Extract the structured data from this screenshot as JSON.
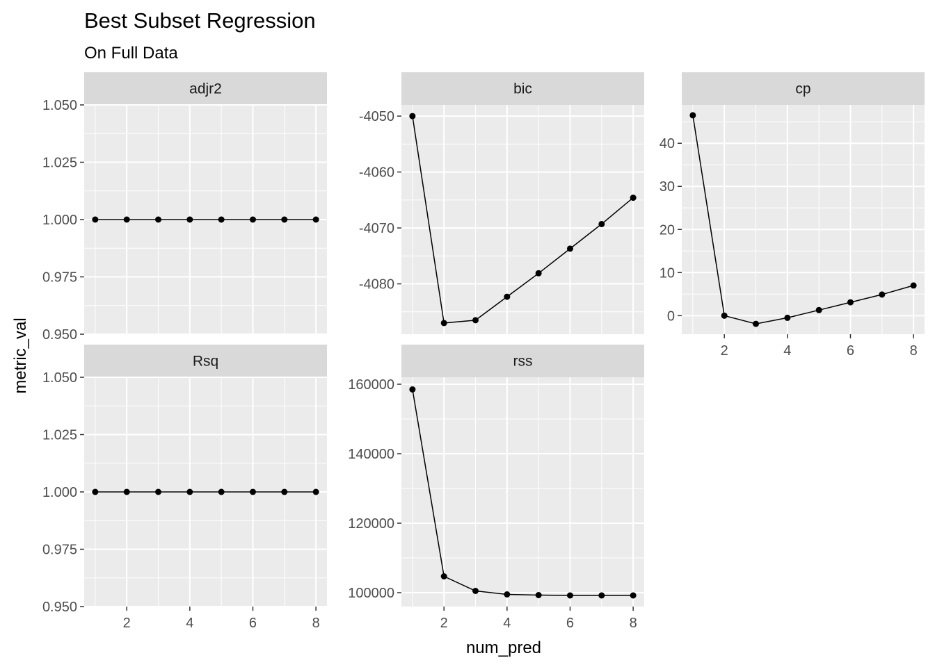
{
  "chart_data": {
    "type": "line",
    "title": "Best Subset Regression",
    "subtitle": "On Full Data",
    "xlabel": "num_pred",
    "ylabel": "metric_val",
    "x": [
      1,
      2,
      3,
      4,
      5,
      6,
      7,
      8
    ],
    "x_ticks": [
      2,
      4,
      6,
      8
    ],
    "grid": true,
    "facet_scales": "free_y",
    "panels": [
      {
        "name": "adjr2",
        "values": [
          1,
          1,
          1,
          1,
          1,
          1,
          1,
          1
        ],
        "ylim": [
          0.95,
          1.05
        ],
        "y_ticks": [
          0.95,
          0.975,
          1.0,
          1.025,
          1.05
        ],
        "y_tick_labels": [
          "0.950",
          "0.975",
          "1.000",
          "1.025",
          "1.050"
        ]
      },
      {
        "name": "bic",
        "values": [
          -4050,
          -4087,
          -4086.5,
          -4082.3,
          -4078.1,
          -4073.7,
          -4069.3,
          -4064.6
        ],
        "ylim": [
          -4089,
          -4048
        ],
        "y_ticks": [
          -4050,
          -4060,
          -4070,
          -4080
        ],
        "y_tick_labels": [
          "-4050",
          "-4060",
          "-4070",
          "-4080"
        ]
      },
      {
        "name": "cp",
        "values": [
          46.5,
          0,
          -1.9,
          -0.5,
          1.3,
          3.1,
          4.9,
          7
        ],
        "ylim": [
          -4.3,
          48.9
        ],
        "y_ticks": [
          0,
          10,
          20,
          30,
          40
        ],
        "y_tick_labels": [
          "0",
          "10",
          "20",
          "30",
          "40"
        ]
      },
      {
        "name": "Rsq",
        "values": [
          1,
          1,
          1,
          1,
          1,
          1,
          1,
          1
        ],
        "ylim": [
          0.95,
          1.05
        ],
        "y_ticks": [
          0.95,
          0.975,
          1.0,
          1.025,
          1.05
        ],
        "y_tick_labels": [
          "0.950",
          "0.975",
          "1.000",
          "1.025",
          "1.050"
        ]
      },
      {
        "name": "rss",
        "values": [
          158500,
          104700,
          100500,
          99500,
          99300,
          99200,
          99200,
          99200
        ],
        "ylim": [
          96000,
          162000
        ],
        "y_ticks": [
          100000,
          120000,
          140000,
          160000
        ],
        "y_tick_labels": [
          "100000",
          "120000",
          "140000",
          "160000"
        ]
      }
    ],
    "colors": {
      "panel_bg": "#ebebeb",
      "strip_bg": "#d9d9d9",
      "grid": "#ffffff",
      "line": "#000000",
      "point": "#000000"
    }
  }
}
